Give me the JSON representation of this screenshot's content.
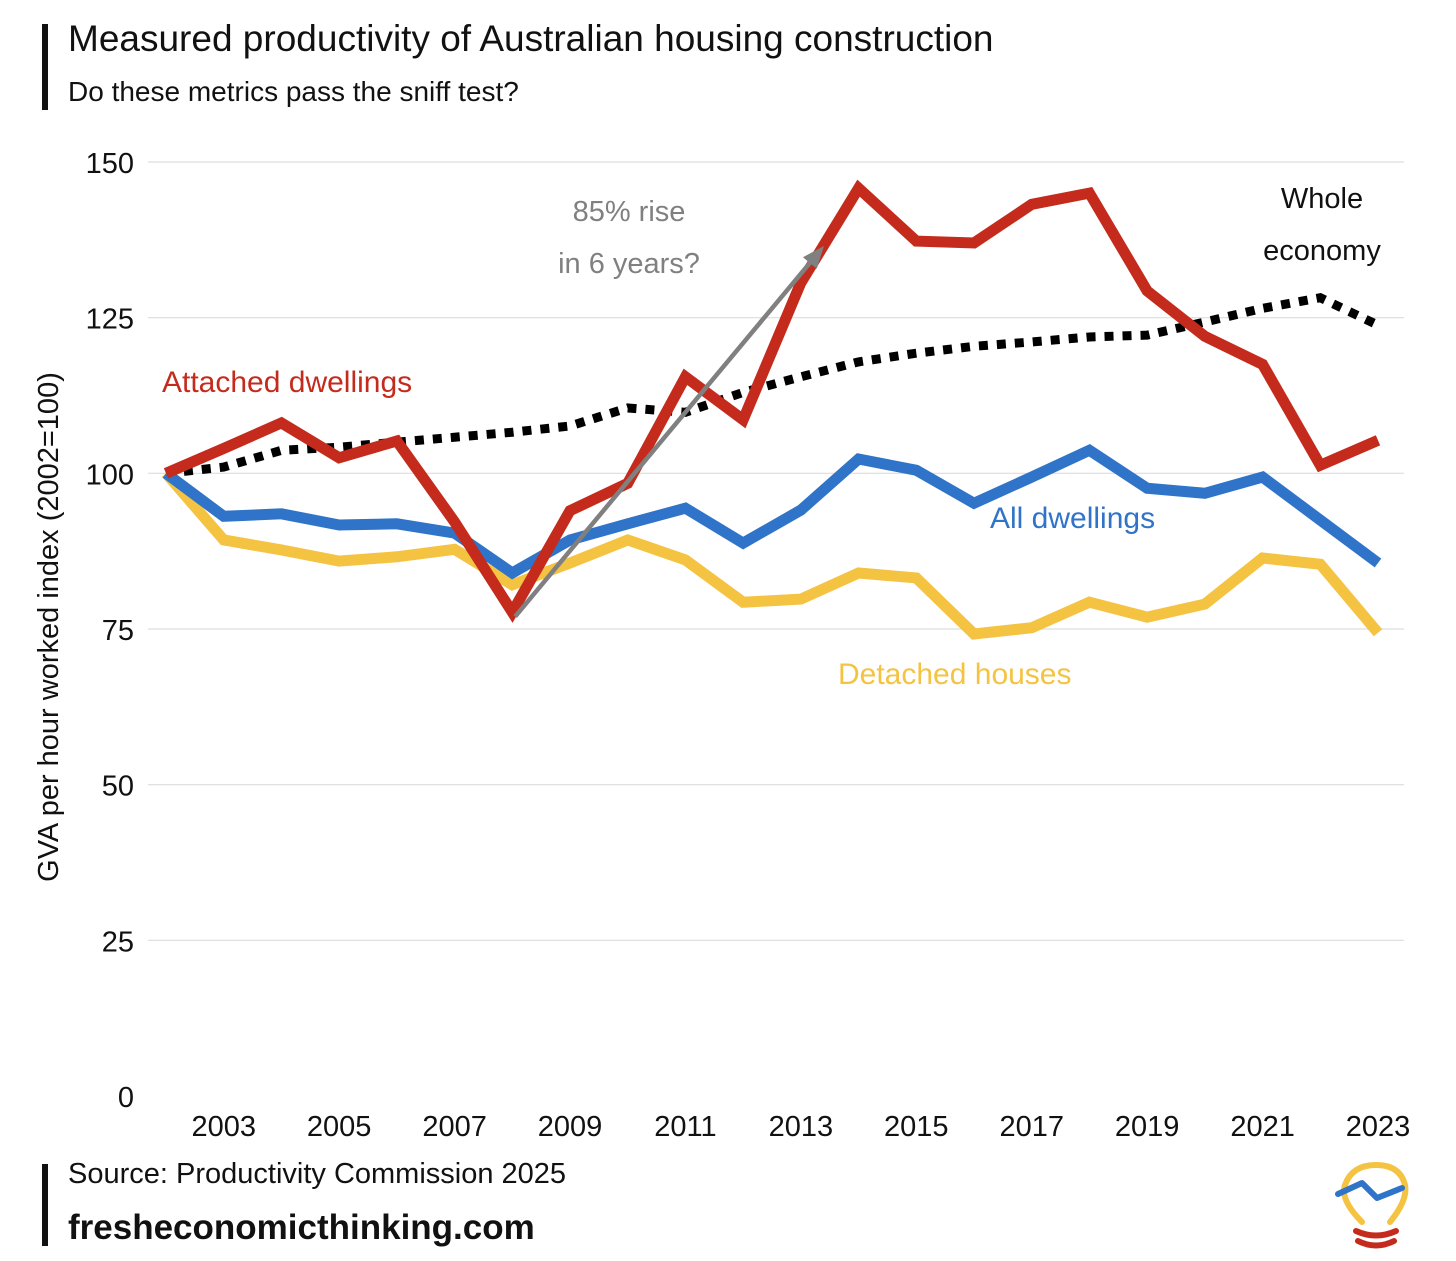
{
  "header": {
    "title": "Measured productivity of Australian housing construction",
    "subtitle": "Do these metrics pass the sniff test?"
  },
  "footer": {
    "source": "Source: Productivity Commission 2025",
    "site": "fresheconomicthinking.com"
  },
  "colors": {
    "attached": "#C42B1C",
    "all": "#2F74C8",
    "detached": "#F5C342",
    "whole": "#000000",
    "annotation": "#808080",
    "grid": "#DDDDDD"
  },
  "chart_data": {
    "type": "line",
    "title": "Measured productivity of Australian housing construction",
    "xlabel": "",
    "ylabel": "GVA per hour worked index (2002=100)",
    "ylim": [
      0,
      150
    ],
    "yticks": [
      0,
      25,
      50,
      75,
      100,
      125,
      150
    ],
    "xlim": [
      2002,
      2023
    ],
    "xticks": [
      2003,
      2005,
      2007,
      2009,
      2011,
      2013,
      2015,
      2017,
      2019,
      2021,
      2023
    ],
    "grid": true,
    "x": [
      2002,
      2003,
      2004,
      2005,
      2006,
      2007,
      2008,
      2009,
      2010,
      2011,
      2012,
      2013,
      2014,
      2015,
      2016,
      2017,
      2018,
      2019,
      2020,
      2021,
      2022,
      2023
    ],
    "series": [
      {
        "name": "Whole economy",
        "label_lines": [
          "Whole",
          "economy"
        ],
        "key": "whole",
        "style": "dotted",
        "values": [
          100,
          101,
          103.7,
          104.2,
          105,
          105.8,
          106.6,
          107.6,
          110.5,
          109.8,
          113,
          115.5,
          117.9,
          119.3,
          120.4,
          121.1,
          121.9,
          122.2,
          124.3,
          126.5,
          128.2,
          123.8
        ]
      },
      {
        "name": "Detached houses",
        "key": "detached",
        "style": "solid",
        "values": [
          100,
          89.3,
          87.7,
          85.9,
          86.6,
          87.8,
          82.1,
          85.6,
          89.3,
          86.1,
          79.3,
          79.8,
          84,
          83.2,
          74.2,
          75.2,
          79.3,
          76.9,
          79,
          86.4,
          85.4,
          74.4
        ]
      },
      {
        "name": "All dwellings",
        "key": "all",
        "style": "solid",
        "values": [
          100,
          93.1,
          93.5,
          91.7,
          91.9,
          90.4,
          84,
          89.3,
          91.9,
          94.4,
          88.8,
          94.1,
          102.3,
          100.5,
          95.2,
          99.4,
          103.7,
          97.6,
          96.8,
          99.4,
          92.5,
          85.6
        ]
      },
      {
        "name": "Attached dwellings",
        "key": "attached",
        "style": "solid",
        "values": [
          100,
          104,
          108.1,
          102.5,
          105.2,
          92.2,
          77.7,
          94,
          98.4,
          115.5,
          108.6,
          130.6,
          145.8,
          137.3,
          137,
          143.2,
          145,
          129.3,
          122,
          117.5,
          101.3,
          105.3
        ]
      }
    ],
    "annotations": [
      {
        "text_lines": [
          "85% rise",
          "in 6 years?"
        ],
        "arrow_from": [
          2008.05,
          77
        ],
        "arrow_to": [
          2013.4,
          136.5
        ]
      }
    ]
  }
}
